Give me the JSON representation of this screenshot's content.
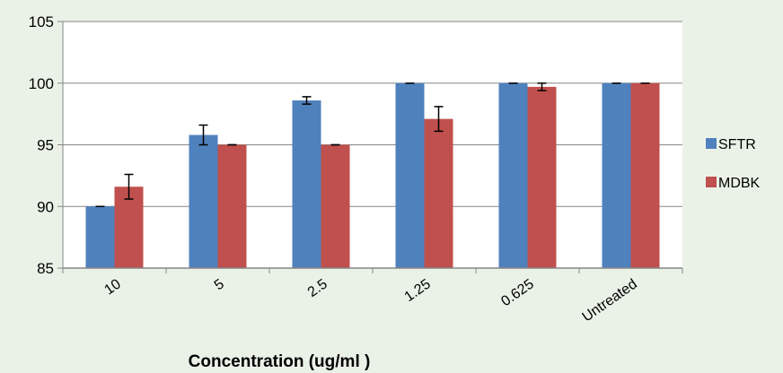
{
  "chart_data": {
    "type": "bar",
    "title": "",
    "xlabel": "Concentration (ug/ml )",
    "ylabel": "",
    "ylim": [
      85,
      105
    ],
    "yticks": [
      85,
      90,
      95,
      100,
      105
    ],
    "categories": [
      "10",
      "5",
      "2.5",
      "1.25",
      "0.625",
      "Untreated"
    ],
    "series": [
      {
        "name": "SFTR",
        "color": "#4f81bd",
        "values": [
          90.0,
          95.8,
          98.6,
          100.0,
          100.0,
          100.0
        ],
        "errors": [
          0.0,
          0.8,
          0.3,
          0.0,
          0.0,
          0.0
        ]
      },
      {
        "name": "MDBK",
        "color": "#c0504d",
        "values": [
          91.6,
          95.0,
          95.0,
          97.1,
          99.7,
          100.0
        ],
        "errors": [
          1.0,
          0.0,
          0.0,
          1.0,
          0.3,
          0.0
        ]
      }
    ],
    "grid": true,
    "legend": "right"
  }
}
